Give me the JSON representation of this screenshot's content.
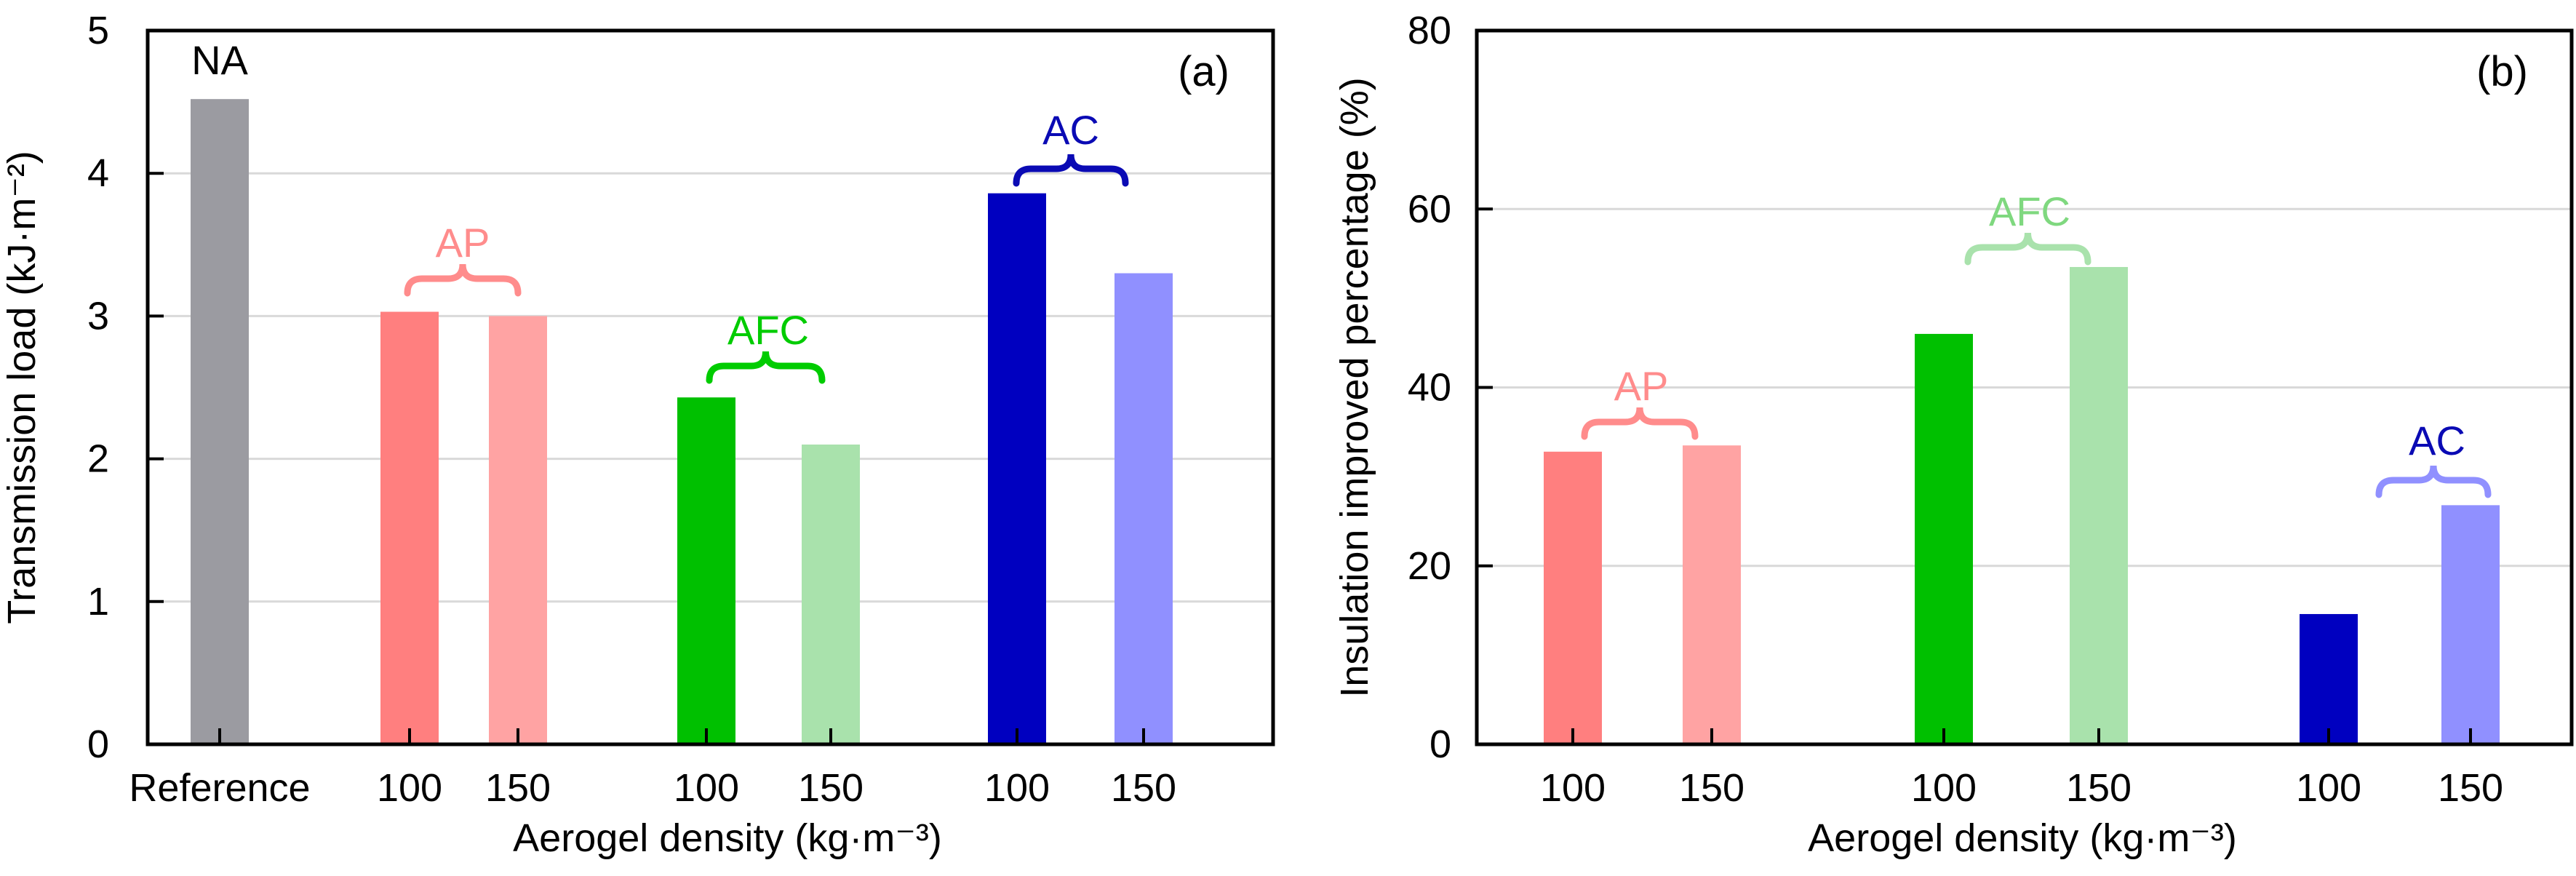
{
  "chart_data": [
    {
      "type": "bar",
      "panel_label": "(a)",
      "title": "",
      "xlabel": "Aerogel density (kg·m⁻³)",
      "ylabel": "Transmission load (kJ·m⁻²)",
      "ylim": [
        0,
        5
      ],
      "yticks": [
        "0",
        "1",
        "2",
        "3",
        "4",
        "5"
      ],
      "grid": true,
      "bars": [
        {
          "category": "Reference",
          "value": 4.52,
          "color": "#9b9ba1"
        },
        {
          "category": "100",
          "value": 3.03,
          "color": "#ff7f7f"
        },
        {
          "category": "150",
          "value": 3.0,
          "color": "#ffa3a3"
        },
        {
          "category": "100",
          "value": 2.43,
          "color": "#00c000"
        },
        {
          "category": "150",
          "value": 2.1,
          "color": "#a9e2ac"
        },
        {
          "category": "100",
          "value": 3.86,
          "color": "#0000c0"
        },
        {
          "category": "150",
          "value": 3.3,
          "color": "#9090ff"
        }
      ],
      "annotations": [
        {
          "text": "NA",
          "color": "#000000"
        },
        {
          "text": "AP",
          "color": "#ff8c8c"
        },
        {
          "text": "AFC",
          "color": "#00cc00"
        },
        {
          "text": "AC",
          "color": "#0a0ab4"
        }
      ]
    },
    {
      "type": "bar",
      "panel_label": "(b)",
      "title": "",
      "xlabel": "Aerogel density (kg·m⁻³)",
      "ylabel": "Insulation improved percentage (%)",
      "ylim": [
        0,
        80
      ],
      "yticks": [
        "0",
        "20",
        "40",
        "60",
        "80"
      ],
      "grid": true,
      "bars": [
        {
          "category": "100",
          "value": 32.8,
          "color": "#ff7f7f"
        },
        {
          "category": "150",
          "value": 33.5,
          "color": "#ffa3a3"
        },
        {
          "category": "100",
          "value": 46.0,
          "color": "#00c000"
        },
        {
          "category": "150",
          "value": 53.5,
          "color": "#a9e2ac"
        },
        {
          "category": "100",
          "value": 14.6,
          "color": "#0000c0"
        },
        {
          "category": "150",
          "value": 26.8,
          "color": "#9090ff"
        }
      ],
      "annotations": [
        {
          "text": "AP",
          "color": "#ff8c8c"
        },
        {
          "text": "AFC",
          "color": "#7fd87f"
        },
        {
          "text": "AC",
          "color": "#0a0ab4"
        }
      ],
      "annotation_brace_colors": [
        "#ff8c8c",
        "#a9e2ac",
        "#9090ff"
      ]
    }
  ]
}
